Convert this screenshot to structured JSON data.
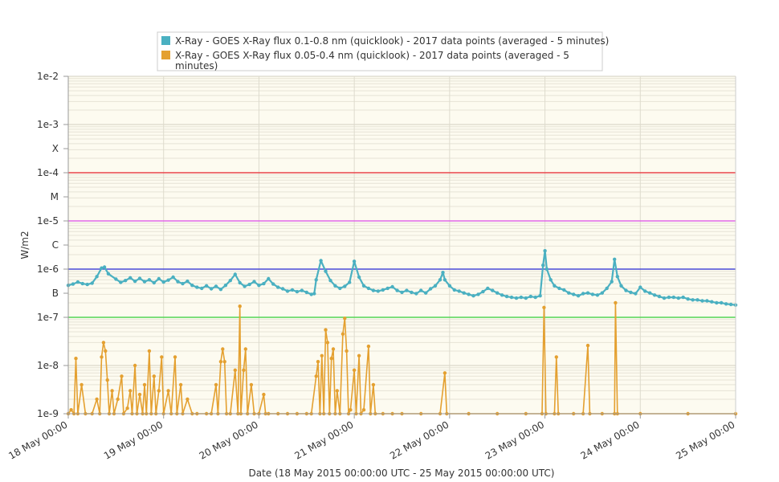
{
  "chart_data": {
    "type": "line",
    "y_scale": "log",
    "ylabel": "W/m2",
    "xlabel": "Date (18 May 2015 00:00:00 UTC - 25 May 2015 00:00:00 UTC)",
    "ylim": [
      1e-09,
      0.01
    ],
    "xlim": [
      "18 May 00:00",
      "25 May 00:00"
    ],
    "y_ticks": [
      {
        "label": "1e-2",
        "value": 0.01
      },
      {
        "label": "1e-3",
        "value": 0.001
      },
      {
        "label": "X",
        "value": 0.000316
      },
      {
        "label": "1e-4",
        "value": 0.0001
      },
      {
        "label": "M",
        "value": 3.16e-05
      },
      {
        "label": "1e-5",
        "value": 1e-05
      },
      {
        "label": "C",
        "value": 3.16e-06
      },
      {
        "label": "1e-6",
        "value": 1e-06
      },
      {
        "label": "B",
        "value": 3.16e-07
      },
      {
        "label": "1e-7",
        "value": 1e-07
      },
      {
        "label": "1e-8",
        "value": 1e-08
      },
      {
        "label": "1e-9",
        "value": 1e-09
      }
    ],
    "x_ticks": [
      "18 May 00:00",
      "19 May 00:00",
      "20 May 00:00",
      "21 May 00:00",
      "22 May 00:00",
      "23 May 00:00",
      "24 May 00:00",
      "25 May 00:00"
    ],
    "grid": true,
    "legend_position": "top",
    "thresholds": [
      {
        "value": 0.0001,
        "color": "#e8454a"
      },
      {
        "value": 1e-05,
        "color": "#e066e8"
      },
      {
        "value": 1e-06,
        "color": "#4a4ad8"
      },
      {
        "value": 1e-07,
        "color": "#55d655"
      }
    ],
    "series": [
      {
        "name": "X-Ray - GOES X-Ray flux 0.1-0.8 nm (quicklook) - 2017 data points (averaged - 5 minutes)",
        "color": "#4ab0c1",
        "points": [
          [
            0.0,
            4.6e-07
          ],
          [
            0.05,
            4.9e-07
          ],
          [
            0.1,
            5.4e-07
          ],
          [
            0.15,
            5e-07
          ],
          [
            0.2,
            4.8e-07
          ],
          [
            0.25,
            5.1e-07
          ],
          [
            0.3,
            7e-07
          ],
          [
            0.35,
            1.05e-06
          ],
          [
            0.38,
            1.1e-06
          ],
          [
            0.42,
            8e-07
          ],
          [
            0.5,
            6.2e-07
          ],
          [
            0.55,
            5.3e-07
          ],
          [
            0.6,
            5.8e-07
          ],
          [
            0.65,
            6.6e-07
          ],
          [
            0.7,
            5.6e-07
          ],
          [
            0.75,
            6.4e-07
          ],
          [
            0.8,
            5.5e-07
          ],
          [
            0.85,
            6e-07
          ],
          [
            0.9,
            5.2e-07
          ],
          [
            0.95,
            6.3e-07
          ],
          [
            1.0,
            5.4e-07
          ],
          [
            1.05,
            5.9e-07
          ],
          [
            1.1,
            6.8e-07
          ],
          [
            1.15,
            5.5e-07
          ],
          [
            1.2,
            5e-07
          ],
          [
            1.25,
            5.6e-07
          ],
          [
            1.3,
            4.6e-07
          ],
          [
            1.35,
            4.2e-07
          ],
          [
            1.4,
            4e-07
          ],
          [
            1.45,
            4.5e-07
          ],
          [
            1.5,
            3.9e-07
          ],
          [
            1.55,
            4.4e-07
          ],
          [
            1.6,
            3.8e-07
          ],
          [
            1.65,
            4.6e-07
          ],
          [
            1.7,
            5.8e-07
          ],
          [
            1.75,
            7.8e-07
          ],
          [
            1.8,
            5.2e-07
          ],
          [
            1.85,
            4.4e-07
          ],
          [
            1.9,
            4.8e-07
          ],
          [
            1.95,
            5.5e-07
          ],
          [
            2.0,
            4.6e-07
          ],
          [
            2.05,
            5e-07
          ],
          [
            2.1,
            6.3e-07
          ],
          [
            2.15,
            4.9e-07
          ],
          [
            2.2,
            4.2e-07
          ],
          [
            2.25,
            3.9e-07
          ],
          [
            2.3,
            3.5e-07
          ],
          [
            2.35,
            3.7e-07
          ],
          [
            2.4,
            3.4e-07
          ],
          [
            2.45,
            3.6e-07
          ],
          [
            2.5,
            3.3e-07
          ],
          [
            2.55,
            3e-07
          ],
          [
            2.58,
            3.1e-07
          ],
          [
            2.6,
            6e-07
          ],
          [
            2.65,
            1.5e-06
          ],
          [
            2.7,
            9e-07
          ],
          [
            2.75,
            5.8e-07
          ],
          [
            2.8,
            4.5e-07
          ],
          [
            2.85,
            4e-07
          ],
          [
            2.9,
            4.4e-07
          ],
          [
            2.95,
            5.3e-07
          ],
          [
            3.0,
            1.45e-06
          ],
          [
            3.05,
            6.8e-07
          ],
          [
            3.1,
            4.5e-07
          ],
          [
            3.15,
            4e-07
          ],
          [
            3.2,
            3.6e-07
          ],
          [
            3.25,
            3.5e-07
          ],
          [
            3.3,
            3.7e-07
          ],
          [
            3.35,
            4e-07
          ],
          [
            3.4,
            4.3e-07
          ],
          [
            3.45,
            3.6e-07
          ],
          [
            3.5,
            3.3e-07
          ],
          [
            3.55,
            3.6e-07
          ],
          [
            3.6,
            3.3e-07
          ],
          [
            3.65,
            3.1e-07
          ],
          [
            3.7,
            3.6e-07
          ],
          [
            3.75,
            3.2e-07
          ],
          [
            3.8,
            3.9e-07
          ],
          [
            3.85,
            4.5e-07
          ],
          [
            3.9,
            6e-07
          ],
          [
            3.93,
            8.5e-07
          ],
          [
            3.95,
            6e-07
          ],
          [
            4.0,
            4.5e-07
          ],
          [
            4.05,
            3.7e-07
          ],
          [
            4.1,
            3.5e-07
          ],
          [
            4.15,
            3.2e-07
          ],
          [
            4.2,
            3e-07
          ],
          [
            4.25,
            2.8e-07
          ],
          [
            4.3,
            3e-07
          ],
          [
            4.35,
            3.4e-07
          ],
          [
            4.4,
            4e-07
          ],
          [
            4.45,
            3.6e-07
          ],
          [
            4.5,
            3.2e-07
          ],
          [
            4.55,
            2.9e-07
          ],
          [
            4.6,
            2.7e-07
          ],
          [
            4.65,
            2.6e-07
          ],
          [
            4.7,
            2.5e-07
          ],
          [
            4.75,
            2.6e-07
          ],
          [
            4.8,
            2.5e-07
          ],
          [
            4.85,
            2.7e-07
          ],
          [
            4.9,
            2.6e-07
          ],
          [
            4.95,
            2.8e-07
          ],
          [
            4.98,
            1.2e-06
          ],
          [
            5.0,
            2.4e-06
          ],
          [
            5.02,
            1e-06
          ],
          [
            5.06,
            6e-07
          ],
          [
            5.1,
            4.5e-07
          ],
          [
            5.15,
            4e-07
          ],
          [
            5.2,
            3.7e-07
          ],
          [
            5.25,
            3.2e-07
          ],
          [
            5.3,
            3e-07
          ],
          [
            5.35,
            2.8e-07
          ],
          [
            5.4,
            3.1e-07
          ],
          [
            5.45,
            3.2e-07
          ],
          [
            5.5,
            3e-07
          ],
          [
            5.55,
            2.9e-07
          ],
          [
            5.6,
            3.2e-07
          ],
          [
            5.65,
            4e-07
          ],
          [
            5.7,
            5.5e-07
          ],
          [
            5.73,
            1.6e-06
          ],
          [
            5.76,
            7e-07
          ],
          [
            5.8,
            4.5e-07
          ],
          [
            5.85,
            3.6e-07
          ],
          [
            5.9,
            3.3e-07
          ],
          [
            5.95,
            3.1e-07
          ],
          [
            6.0,
            4.2e-07
          ],
          [
            6.05,
            3.5e-07
          ],
          [
            6.1,
            3.2e-07
          ],
          [
            6.15,
            2.9e-07
          ],
          [
            6.2,
            2.7e-07
          ],
          [
            6.25,
            2.5e-07
          ],
          [
            6.3,
            2.6e-07
          ],
          [
            6.35,
            2.6e-07
          ],
          [
            6.4,
            2.5e-07
          ],
          [
            6.45,
            2.6e-07
          ],
          [
            6.5,
            2.4e-07
          ],
          [
            6.55,
            2.3e-07
          ],
          [
            6.6,
            2.3e-07
          ],
          [
            6.65,
            2.2e-07
          ],
          [
            6.7,
            2.2e-07
          ],
          [
            6.75,
            2.1e-07
          ],
          [
            6.8,
            2e-07
          ],
          [
            6.85,
            2e-07
          ],
          [
            6.9,
            1.9e-07
          ],
          [
            6.95,
            1.85e-07
          ],
          [
            7.0,
            1.8e-07
          ]
        ]
      },
      {
        "name": "X-Ray - GOES X-Ray flux 0.05-0.4 nm (quicklook) - 2017 data points (averaged - 5 minutes)",
        "color": "#e4a030",
        "points": [
          [
            0.0,
            1e-09
          ],
          [
            0.03,
            1.2e-09
          ],
          [
            0.06,
            1e-09
          ],
          [
            0.08,
            1.4e-08
          ],
          [
            0.1,
            1e-09
          ],
          [
            0.14,
            4e-09
          ],
          [
            0.18,
            1e-09
          ],
          [
            0.25,
            1e-09
          ],
          [
            0.3,
            2e-09
          ],
          [
            0.33,
            1e-09
          ],
          [
            0.35,
            1.5e-08
          ],
          [
            0.37,
            3e-08
          ],
          [
            0.39,
            2e-08
          ],
          [
            0.41,
            5e-09
          ],
          [
            0.43,
            1e-09
          ],
          [
            0.46,
            3e-09
          ],
          [
            0.48,
            1e-09
          ],
          [
            0.52,
            2e-09
          ],
          [
            0.56,
            6e-09
          ],
          [
            0.58,
            1e-09
          ],
          [
            0.62,
            1.3e-09
          ],
          [
            0.65,
            3e-09
          ],
          [
            0.67,
            1e-09
          ],
          [
            0.7,
            1e-08
          ],
          [
            0.72,
            1e-09
          ],
          [
            0.75,
            2.5e-09
          ],
          [
            0.78,
            1e-09
          ],
          [
            0.8,
            4e-09
          ],
          [
            0.82,
            1e-09
          ],
          [
            0.85,
            2e-08
          ],
          [
            0.87,
            1e-09
          ],
          [
            0.9,
            6e-09
          ],
          [
            0.92,
            1e-09
          ],
          [
            0.95,
            3e-09
          ],
          [
            0.98,
            1.5e-08
          ],
          [
            1.0,
            1e-09
          ],
          [
            1.05,
            3e-09
          ],
          [
            1.08,
            1e-09
          ],
          [
            1.12,
            1.5e-08
          ],
          [
            1.14,
            1e-09
          ],
          [
            1.18,
            4e-09
          ],
          [
            1.2,
            1e-09
          ],
          [
            1.25,
            2e-09
          ],
          [
            1.3,
            1e-09
          ],
          [
            1.35,
            1e-09
          ],
          [
            1.45,
            1e-09
          ],
          [
            1.5,
            1e-09
          ],
          [
            1.55,
            4e-09
          ],
          [
            1.57,
            1e-09
          ],
          [
            1.6,
            1.2e-08
          ],
          [
            1.62,
            2.2e-08
          ],
          [
            1.64,
            1.2e-08
          ],
          [
            1.66,
            1e-09
          ],
          [
            1.7,
            1e-09
          ],
          [
            1.75,
            8e-09
          ],
          [
            1.78,
            1e-09
          ],
          [
            1.8,
            1.7e-07
          ],
          [
            1.81,
            1e-09
          ],
          [
            1.84,
            8e-09
          ],
          [
            1.86,
            2.2e-08
          ],
          [
            1.88,
            1e-09
          ],
          [
            1.92,
            4e-09
          ],
          [
            1.95,
            1e-09
          ],
          [
            2.0,
            1e-09
          ],
          [
            2.05,
            2.5e-09
          ],
          [
            2.07,
            1e-09
          ],
          [
            2.1,
            1e-09
          ],
          [
            2.2,
            1e-09
          ],
          [
            2.3,
            1e-09
          ],
          [
            2.4,
            1e-09
          ],
          [
            2.5,
            1e-09
          ],
          [
            2.55,
            1e-09
          ],
          [
            2.6,
            6e-09
          ],
          [
            2.62,
            1.2e-08
          ],
          [
            2.64,
            1e-09
          ],
          [
            2.66,
            1.6e-08
          ],
          [
            2.68,
            1e-09
          ],
          [
            2.7,
            5.5e-08
          ],
          [
            2.72,
            3e-08
          ],
          [
            2.74,
            1e-09
          ],
          [
            2.76,
            1.4e-08
          ],
          [
            2.78,
            2.2e-08
          ],
          [
            2.8,
            1e-09
          ],
          [
            2.82,
            3e-09
          ],
          [
            2.85,
            1e-09
          ],
          [
            2.88,
            4.5e-08
          ],
          [
            2.9,
            9.5e-08
          ],
          [
            2.92,
            2e-08
          ],
          [
            2.94,
            1e-09
          ],
          [
            2.96,
            1.2e-09
          ],
          [
            3.0,
            8e-09
          ],
          [
            3.02,
            1e-09
          ],
          [
            3.05,
            1.6e-08
          ],
          [
            3.07,
            1e-09
          ],
          [
            3.1,
            1.2e-09
          ],
          [
            3.15,
            2.5e-08
          ],
          [
            3.17,
            1e-09
          ],
          [
            3.2,
            4e-09
          ],
          [
            3.22,
            1e-09
          ],
          [
            3.3,
            1e-09
          ],
          [
            3.4,
            1e-09
          ],
          [
            3.5,
            1e-09
          ],
          [
            3.7,
            1e-09
          ],
          [
            3.9,
            1e-09
          ],
          [
            3.95,
            7e-09
          ],
          [
            3.97,
            1e-09
          ],
          [
            4.2,
            1e-09
          ],
          [
            4.5,
            1e-09
          ],
          [
            4.8,
            1e-09
          ],
          [
            4.97,
            1e-09
          ],
          [
            4.99,
            1.6e-07
          ],
          [
            5.01,
            1e-09
          ],
          [
            5.1,
            1e-09
          ],
          [
            5.12,
            1.5e-08
          ],
          [
            5.14,
            1e-09
          ],
          [
            5.3,
            1e-09
          ],
          [
            5.4,
            1e-09
          ],
          [
            5.45,
            2.6e-08
          ],
          [
            5.47,
            1e-09
          ],
          [
            5.6,
            1e-09
          ],
          [
            5.73,
            1e-09
          ],
          [
            5.74,
            2e-07
          ],
          [
            5.76,
            1e-09
          ],
          [
            6.0,
            1e-09
          ],
          [
            6.5,
            1e-09
          ],
          [
            7.0,
            1e-09
          ]
        ]
      }
    ]
  }
}
